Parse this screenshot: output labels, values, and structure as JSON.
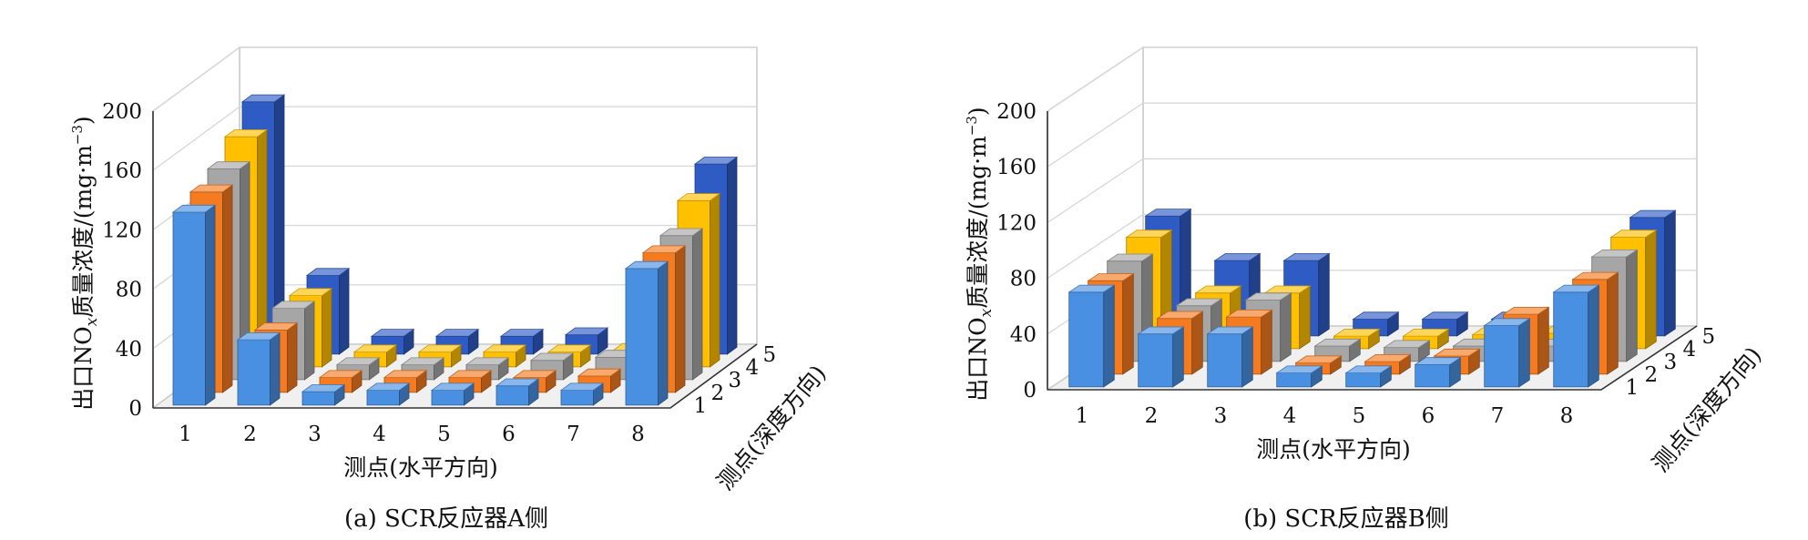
{
  "colors": {
    "depth_1": "#4a90e2",
    "depth_2": "#f47b20",
    "depth_3": "#a6a6a6",
    "depth_4": "#ffc000",
    "depth_5": "#2f5cc4",
    "wall": "#c9c9c9",
    "floor": "#f0f0f0",
    "grid": "#d9d9d9"
  },
  "chart_data": [
    {
      "type": "bar",
      "caption": "(a)  SCR反应器A侧",
      "ylabel": "出口NO",
      "ylabel_sub": "x",
      "ylabel_tail": "质量浓度/(mg·m",
      "ylabel_sup": "−3",
      "ylabel_close": ")",
      "xlabel": "测点(水平方向)",
      "zlabel": "测点(深度方向)",
      "ylim": [
        0,
        200
      ],
      "yticks": [
        "0",
        "40",
        "80",
        "120",
        "160",
        "200"
      ],
      "categories": [
        "1",
        "2",
        "3",
        "4",
        "5",
        "6",
        "7",
        "8"
      ],
      "depth_labels": [
        "1",
        "2",
        "3",
        "4",
        "5"
      ],
      "series": [
        {
          "values": [
            130,
            44,
            9,
            10,
            10,
            13,
            10,
            92
          ]
        },
        {
          "values": [
            135,
            42,
            10,
            10,
            10,
            10,
            11,
            94
          ]
        },
        {
          "values": [
            142,
            48,
            10,
            10,
            10,
            13,
            15,
            97
          ]
        },
        {
          "values": [
            155,
            48,
            10,
            10,
            10,
            10,
            11,
            112
          ]
        },
        {
          "values": [
            170,
            53,
            12,
            12,
            12,
            13,
            14,
            128
          ]
        }
      ]
    },
    {
      "type": "bar",
      "caption": "(b)  SCR反应器B侧",
      "ylabel": "出口NO",
      "ylabel_sub": "x",
      "ylabel_tail": "质量浓度/(mg·m",
      "ylabel_sup": "−3",
      "ylabel_close": ")",
      "xlabel": "测点(水平方向)",
      "zlabel": "测点(深度方向)",
      "ylim": [
        0,
        200
      ],
      "yticks": [
        "0",
        "40",
        "80",
        "120",
        "160",
        "200"
      ],
      "categories": [
        "1",
        "2",
        "3",
        "4",
        "5",
        "6",
        "7",
        "8"
      ],
      "depth_labels": [
        "1",
        "2",
        "3",
        "4",
        "5"
      ],
      "series": [
        {
          "values": [
            68,
            38,
            38,
            10,
            10,
            16,
            44,
            68
          ]
        },
        {
          "values": [
            67,
            40,
            41,
            8,
            9,
            13,
            43,
            68
          ]
        },
        {
          "values": [
            72,
            40,
            44,
            11,
            10,
            11,
            11,
            75
          ]
        },
        {
          "values": [
            80,
            40,
            40,
            9,
            9,
            10,
            11,
            80
          ]
        },
        {
          "values": [
            86,
            54,
            54,
            12,
            12,
            12,
            18,
            85
          ]
        }
      ]
    }
  ]
}
